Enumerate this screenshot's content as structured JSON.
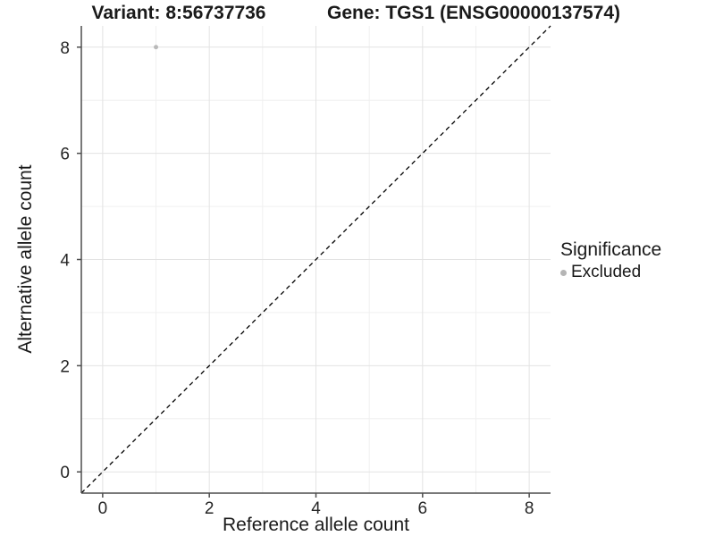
{
  "titles": {
    "left": "Variant: 8:56737736",
    "right": "Gene: TGS1 (ENSG00000137574)"
  },
  "chart_data": {
    "type": "scatter",
    "xlabel": "Reference allele count",
    "ylabel": "Alternative allele count",
    "xlim": [
      -0.4,
      8.4
    ],
    "ylim": [
      -0.4,
      8.4
    ],
    "x_ticks": [
      0,
      2,
      4,
      6,
      8
    ],
    "y_ticks": [
      0,
      2,
      4,
      6,
      8
    ],
    "x_minor_ticks": [
      1,
      3,
      5,
      7
    ],
    "y_minor_ticks": [
      1,
      3,
      5,
      7
    ],
    "grid": "on",
    "points": [
      {
        "x": 1,
        "y": 8,
        "series": "Excluded"
      }
    ],
    "reference_line": {
      "slope": 1,
      "intercept": 0,
      "style": "dashed"
    },
    "legend": {
      "title": "Significance",
      "position": "right",
      "items": [
        {
          "label": "Excluded",
          "color": "#b5b5b5",
          "marker": "circle"
        }
      ]
    },
    "colors": {
      "point": "#b9b9b9",
      "grid_major": "#e3e3e3",
      "grid_minor": "#f0f0f0",
      "axis_line": "#4d4d4d",
      "tick_mark": "#4d4d4d",
      "tick_text": "#262626",
      "reference_line": "#000000",
      "background": "#ffffff"
    }
  }
}
